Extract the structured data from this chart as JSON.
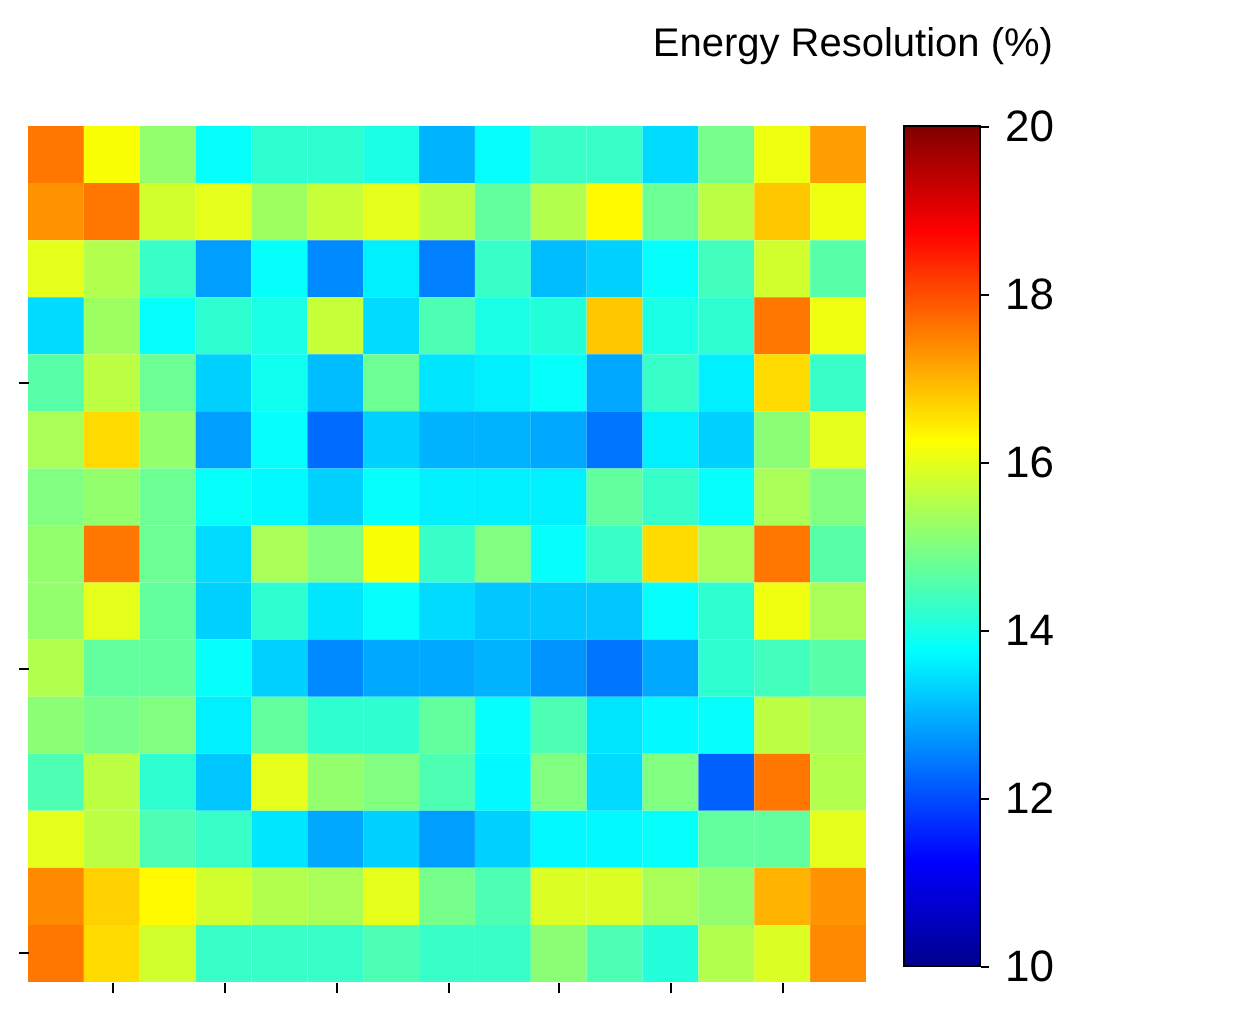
{
  "chart_data": {
    "type": "heatmap",
    "clabel": "Energy Resolution (%)",
    "categories": [
      null,
      null,
      null,
      null,
      null,
      null,
      null,
      null,
      null,
      null,
      null,
      null,
      null,
      null,
      null
    ],
    "y_categories": [
      null,
      null,
      null,
      null,
      null,
      null,
      null,
      null,
      null,
      null,
      null,
      null,
      null,
      null,
      null
    ],
    "cells": [
      [
        17.6,
        16.2,
        15.2,
        13.8,
        14.2,
        14.2,
        14.0,
        13.0,
        13.8,
        14.3,
        14.3,
        13.4,
        14.9,
        16.1,
        17.2
      ],
      [
        17.3,
        17.6,
        15.8,
        16.0,
        15.3,
        15.7,
        16.0,
        15.6,
        14.7,
        15.5,
        16.3,
        14.8,
        15.6,
        16.8,
        16.1
      ],
      [
        16.0,
        15.5,
        14.3,
        12.8,
        13.8,
        12.6,
        13.6,
        12.5,
        14.3,
        13.1,
        13.3,
        13.8,
        14.4,
        15.8,
        14.6
      ],
      [
        13.4,
        15.3,
        13.8,
        14.2,
        14.0,
        15.7,
        13.4,
        14.5,
        14.0,
        14.1,
        16.8,
        14.0,
        14.2,
        17.6,
        16.1
      ],
      [
        14.6,
        15.6,
        14.8,
        13.3,
        13.9,
        13.1,
        14.8,
        13.5,
        13.6,
        13.8,
        12.9,
        14.3,
        13.6,
        16.6,
        14.3
      ],
      [
        15.4,
        16.6,
        15.2,
        12.8,
        13.8,
        12.3,
        13.3,
        13.0,
        13.0,
        12.9,
        12.4,
        13.6,
        13.3,
        15.1,
        16.0
      ],
      [
        15.0,
        15.2,
        14.8,
        13.8,
        13.7,
        13.3,
        13.8,
        13.6,
        13.6,
        13.6,
        14.7,
        14.3,
        13.8,
        15.4,
        15.0
      ],
      [
        15.2,
        17.6,
        14.8,
        13.4,
        15.4,
        15.0,
        16.2,
        14.3,
        15.0,
        13.8,
        14.3,
        16.6,
        15.4,
        17.6,
        14.6
      ],
      [
        15.2,
        16.0,
        14.7,
        13.3,
        14.2,
        13.5,
        13.8,
        13.4,
        13.2,
        13.2,
        13.2,
        13.8,
        14.2,
        16.1,
        15.4
      ],
      [
        15.5,
        14.7,
        14.7,
        13.8,
        13.3,
        12.6,
        12.9,
        12.9,
        13.0,
        12.7,
        12.4,
        12.9,
        14.2,
        14.4,
        14.6
      ],
      [
        15.1,
        14.9,
        15.0,
        13.6,
        14.7,
        14.2,
        14.2,
        14.7,
        13.8,
        14.5,
        13.5,
        13.7,
        13.8,
        15.6,
        15.4
      ],
      [
        14.5,
        15.6,
        14.2,
        13.2,
        16.0,
        15.2,
        15.0,
        14.5,
        13.7,
        15.0,
        13.4,
        15.0,
        12.2,
        17.6,
        15.5
      ],
      [
        16.0,
        15.6,
        14.5,
        14.3,
        13.5,
        12.9,
        13.3,
        12.8,
        13.3,
        13.7,
        13.7,
        13.8,
        14.7,
        14.7,
        16.0
      ],
      [
        17.4,
        16.7,
        16.3,
        15.8,
        15.5,
        15.4,
        16.0,
        14.9,
        14.5,
        15.9,
        15.9,
        15.4,
        15.2,
        17.0,
        17.3
      ],
      [
        17.6,
        16.6,
        15.8,
        14.3,
        14.3,
        14.3,
        14.5,
        14.3,
        14.3,
        15.1,
        14.5,
        14.1,
        15.5,
        15.9,
        17.4
      ]
    ],
    "clim": [
      10,
      20
    ],
    "cticks": [
      10,
      12,
      14,
      16,
      18,
      20
    ],
    "tick_labels": false
  }
}
